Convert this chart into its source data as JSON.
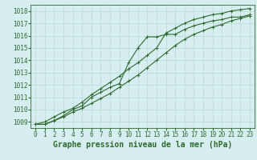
{
  "title": "Graphe pression niveau de la mer (hPa)",
  "x_values": [
    0,
    1,
    2,
    3,
    4,
    5,
    6,
    7,
    8,
    9,
    10,
    11,
    12,
    13,
    14,
    15,
    16,
    17,
    18,
    19,
    20,
    21,
    22,
    23
  ],
  "line1": [
    1008.8,
    1008.8,
    1009.1,
    1009.4,
    1009.8,
    1010.1,
    1010.5,
    1010.9,
    1011.3,
    1011.8,
    1012.3,
    1012.8,
    1013.4,
    1014.0,
    1014.6,
    1015.2,
    1015.7,
    1016.1,
    1016.4,
    1016.7,
    1016.9,
    1017.2,
    1017.4,
    1017.6
  ],
  "line2": [
    1008.8,
    1008.8,
    1009.1,
    1009.5,
    1010.0,
    1010.3,
    1011.0,
    1011.4,
    1011.8,
    1012.1,
    1013.8,
    1015.0,
    1015.9,
    1015.9,
    1016.1,
    1016.1,
    1016.5,
    1016.8,
    1017.0,
    1017.2,
    1017.3,
    1017.5,
    1017.5,
    1017.7
  ],
  "line3": [
    1008.8,
    1009.0,
    1009.4,
    1009.8,
    1010.1,
    1010.6,
    1011.2,
    1011.7,
    1012.2,
    1012.7,
    1013.3,
    1013.8,
    1014.4,
    1015.0,
    1016.2,
    1016.6,
    1017.0,
    1017.3,
    1017.5,
    1017.7,
    1017.8,
    1018.0,
    1018.1,
    1018.2
  ],
  "line_color": "#2d6a2d",
  "bg_color": "#d6eef0",
  "grid_color": "#b8d8d8",
  "ylim_min": 1008.5,
  "ylim_max": 1018.5,
  "yticks": [
    1009,
    1010,
    1011,
    1012,
    1013,
    1014,
    1015,
    1016,
    1017,
    1018
  ],
  "marker": "+",
  "marker_size": 3,
  "line_width": 0.8,
  "title_fontsize": 7,
  "tick_fontsize": 5.5
}
